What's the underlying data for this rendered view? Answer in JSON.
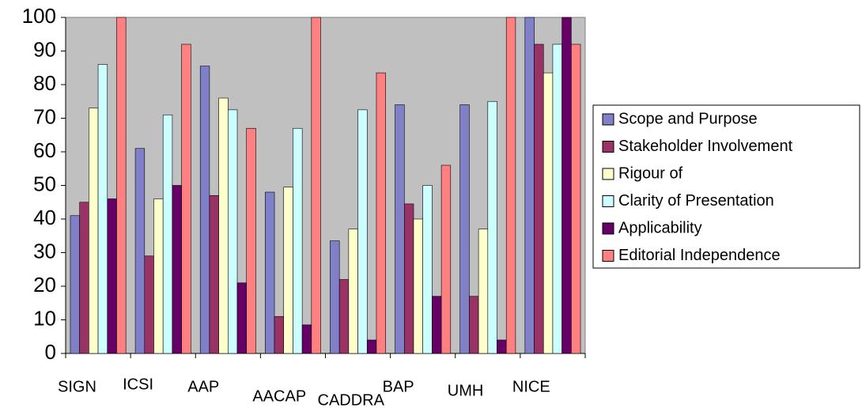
{
  "chart_data": {
    "type": "bar",
    "categories": [
      "SIGN",
      "ICSI",
      "AAP",
      "AACAP",
      "CADDRA",
      "BAP",
      "UMH",
      "NICE"
    ],
    "series": [
      {
        "name": "Scope and Purpose",
        "color": "#8080c8",
        "values": [
          41,
          61,
          85.5,
          48,
          33.5,
          74,
          74,
          100
        ]
      },
      {
        "name": "Stakeholder Involvement",
        "color": "#993366",
        "values": [
          45,
          29,
          47,
          11,
          22,
          44.5,
          17,
          92
        ]
      },
      {
        "name": "Rigour of",
        "color": "#ffffcc",
        "values": [
          73,
          46,
          76,
          49.5,
          37,
          40,
          37,
          83.5
        ]
      },
      {
        "name": "Clarity of Presentation",
        "color": "#ccffff",
        "values": [
          86,
          71,
          72.5,
          67,
          72.5,
          50,
          75,
          92
        ]
      },
      {
        "name": "Applicability",
        "color": "#660066",
        "values": [
          46,
          50,
          21,
          8.5,
          4,
          17,
          4,
          100
        ]
      },
      {
        "name": "Editorial Independence",
        "color": "#ff8080",
        "values": [
          100,
          92,
          67,
          100,
          83.5,
          56,
          100,
          92
        ]
      }
    ],
    "ylim": [
      0,
      100
    ],
    "yticks": [
      0,
      10,
      20,
      30,
      40,
      50,
      60,
      70,
      80,
      90,
      100
    ],
    "grid": false,
    "legend": "right"
  }
}
